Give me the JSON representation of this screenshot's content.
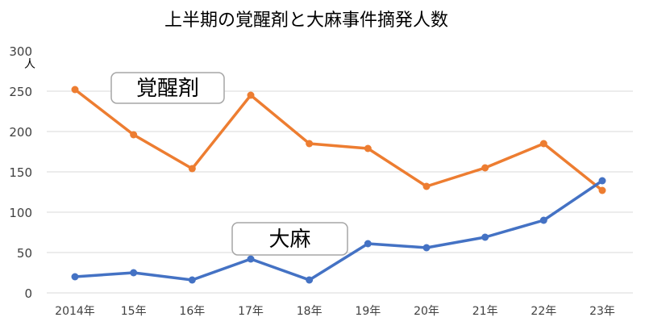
{
  "chart_data": {
    "type": "line",
    "title": "上半期の覚醒剤と大麻事件摘発人数",
    "ylabel": "人",
    "ylim": [
      0,
      300
    ],
    "yticks": [
      0,
      50,
      100,
      150,
      200,
      250,
      300
    ],
    "grid": true,
    "categories": [
      "2014年",
      "15年",
      "16年",
      "17年",
      "18年",
      "19年",
      "20年",
      "21年",
      "22年",
      "23年"
    ],
    "series": [
      {
        "name": "覚醒剤",
        "color": "#ED7D31",
        "values": [
          252,
          196,
          154,
          245,
          185,
          179,
          132,
          155,
          185,
          127
        ]
      },
      {
        "name": "大麻",
        "color": "#4472C4",
        "values": [
          20,
          25,
          16,
          42,
          16,
          61,
          56,
          69,
          90,
          139
        ]
      }
    ]
  }
}
